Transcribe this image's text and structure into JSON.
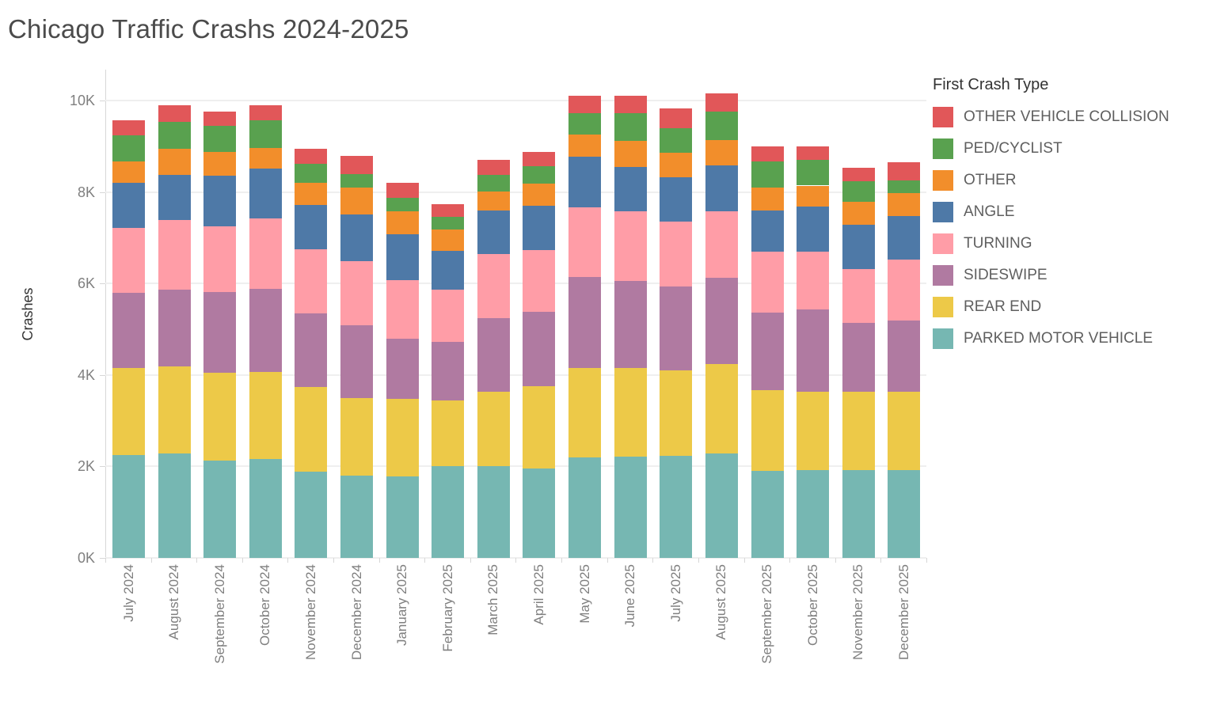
{
  "title": "Chicago Traffic Crashs 2024-2025",
  "y_axis_label": "Crashes",
  "legend": {
    "title": "First Crash Type"
  },
  "palette": {
    "grid_color": "#efefef",
    "axis_color": "#d7d7d7",
    "tick_label_color": "#7f7f7f",
    "axis_title_color": "#333333",
    "legend_label_color": "#5f5f5f",
    "title_color": "#4b4b4b"
  },
  "chart_data": {
    "type": "bar",
    "stacked": true,
    "title": "Chicago Traffic Crashs 2024-2025",
    "xlabel": "",
    "ylabel": "Crashes",
    "ylim": [
      0,
      10500
    ],
    "ytick_values": [
      0,
      2000,
      4000,
      6000,
      8000,
      10000
    ],
    "ytick_labels": [
      "0K",
      "2K",
      "4K",
      "6K",
      "8K",
      "10K"
    ],
    "grid": "horizontal",
    "legend_position": "top-right",
    "legend_title": "First Crash Type",
    "stack_order_bottom_to_top": [
      "PARKED MOTOR VEHICLE",
      "REAR END",
      "SIDESWIPE",
      "TURNING",
      "ANGLE",
      "OTHER",
      "PED/CYCLIST",
      "OTHER VEHICLE COLLISION"
    ],
    "categories": [
      "July 2024",
      "August 2024",
      "September 2024",
      "October 2024",
      "November 2024",
      "December 2024",
      "January 2025",
      "February 2025",
      "March 2025",
      "April 2025",
      "May 2025",
      "June 2025",
      "July 2025",
      "August 2025",
      "September 2025",
      "October 2025",
      "November 2025",
      "December 2025"
    ],
    "series": [
      {
        "name": "OTHER VEHICLE COLLISION",
        "color": "#e15759",
        "values": [
          330,
          370,
          320,
          340,
          330,
          400,
          320,
          270,
          330,
          320,
          380,
          380,
          430,
          400,
          340,
          300,
          290,
          390
        ]
      },
      {
        "name": "PED/CYCLIST",
        "color": "#59a14f",
        "values": [
          580,
          590,
          570,
          590,
          410,
          300,
          310,
          280,
          360,
          370,
          460,
          600,
          540,
          630,
          570,
          560,
          450,
          280
        ]
      },
      {
        "name": "OTHER",
        "color": "#f28e2b",
        "values": [
          460,
          570,
          520,
          450,
          490,
          580,
          500,
          470,
          420,
          490,
          490,
          580,
          520,
          550,
          490,
          460,
          500,
          500
        ]
      },
      {
        "name": "ANGLE",
        "color": "#4e79a7",
        "values": [
          990,
          990,
          1100,
          1100,
          960,
          1020,
          1000,
          850,
          940,
          970,
          1110,
          970,
          970,
          1000,
          900,
          980,
          970,
          950
        ]
      },
      {
        "name": "TURNING",
        "color": "#ff9da7",
        "values": [
          1410,
          1520,
          1430,
          1540,
          1410,
          1410,
          1280,
          1130,
          1400,
          1350,
          1520,
          1520,
          1420,
          1460,
          1340,
          1270,
          1180,
          1340
        ]
      },
      {
        "name": "SIDESWIPE",
        "color": "#b07aa1",
        "values": [
          1640,
          1670,
          1780,
          1810,
          1610,
          1590,
          1320,
          1290,
          1620,
          1620,
          1980,
          1890,
          1840,
          1880,
          1700,
          1790,
          1510,
          1560
        ]
      },
      {
        "name": "REAR END",
        "color": "#edc948",
        "values": [
          1910,
          1910,
          1920,
          1900,
          1850,
          1690,
          1690,
          1440,
          1630,
          1810,
          1960,
          1940,
          1860,
          1950,
          1760,
          1720,
          1710,
          1710
        ]
      },
      {
        "name": "PARKED MOTOR VEHICLE",
        "color": "#76b7b2",
        "values": [
          2250,
          2280,
          2120,
          2170,
          1880,
          1800,
          1780,
          2000,
          2000,
          1950,
          2200,
          2220,
          2240,
          2290,
          1900,
          1920,
          1920,
          1920
        ]
      }
    ]
  }
}
